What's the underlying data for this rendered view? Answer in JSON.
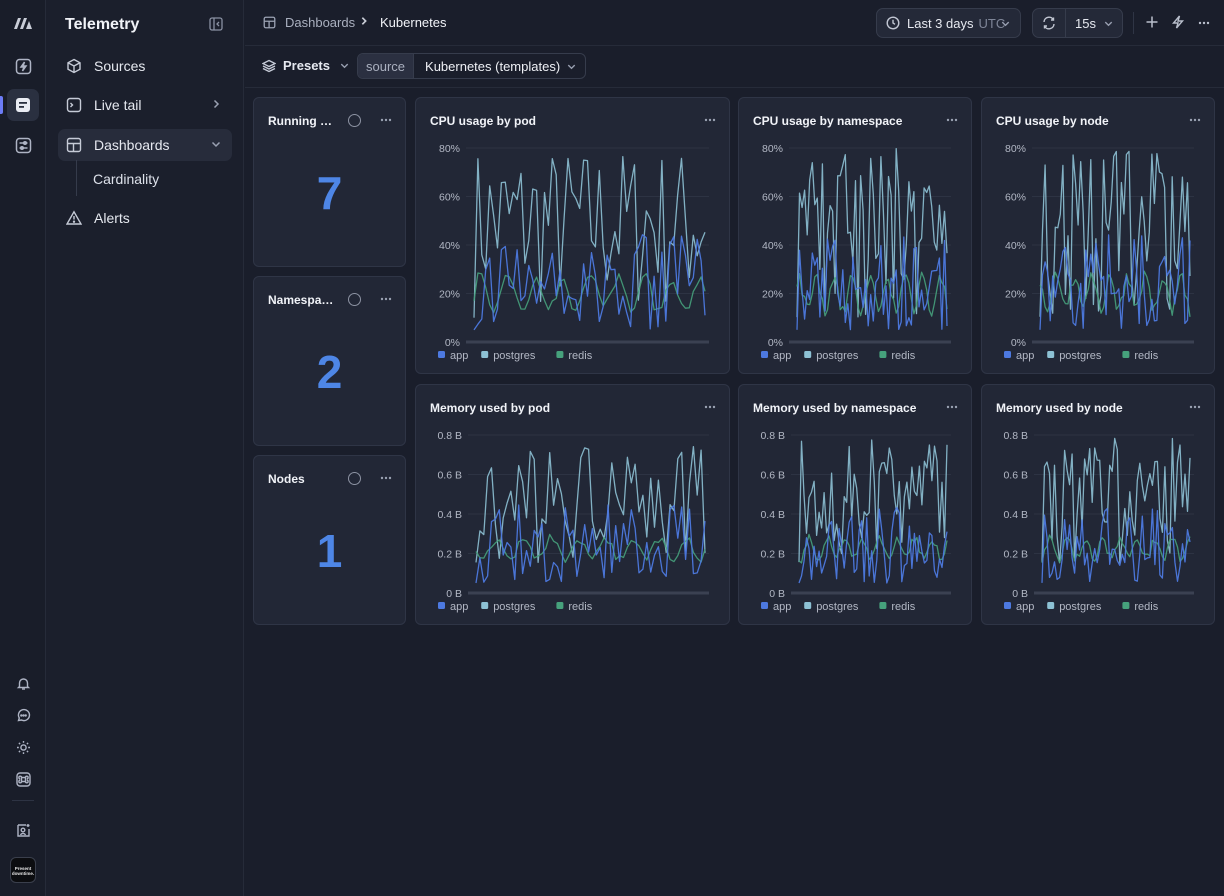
{
  "app": {
    "title": "Telemetry"
  },
  "nav": {
    "items": [
      {
        "label": "Sources",
        "icon": "cube-icon"
      },
      {
        "label": "Live tail",
        "icon": "terminal-icon"
      },
      {
        "label": "Dashboards",
        "icon": "dashboard-icon"
      },
      {
        "label": "Alerts",
        "icon": "alert-triangle-icon"
      }
    ],
    "sub_item": "Cardinality"
  },
  "org_badge": "Present downtime.",
  "breadcrumb": {
    "root": "Dashboards",
    "current": "Kubernetes"
  },
  "time_range": {
    "label": "Last 3 days",
    "timezone": "UTC"
  },
  "refresh": {
    "interval": "15s"
  },
  "toolbar": {
    "presets_label": "Presets",
    "source_key": "source",
    "source_value": "Kubernetes (templates)"
  },
  "stats": [
    {
      "title": "Running pods",
      "value": "7"
    },
    {
      "title": "Namespaces",
      "value": "2"
    },
    {
      "title": "Nodes",
      "value": "1"
    }
  ],
  "colors": {
    "accent": "#6c7cf6",
    "app": "#4d79e0",
    "postgres": "#8dc1d4",
    "redis": "#46a17c",
    "stat": "#4e86e6"
  },
  "chart_data": [
    {
      "type": "line",
      "title": "CPU usage by pod",
      "yticks": [
        "0%",
        "20%",
        "40%",
        "60%",
        "80%"
      ],
      "ylim": [
        0,
        80
      ],
      "x_points": 60,
      "series": [
        {
          "name": "app",
          "range": [
            5,
            45
          ]
        },
        {
          "name": "postgres",
          "range": [
            10,
            80
          ]
        },
        {
          "name": "redis",
          "range": [
            10,
            30
          ]
        }
      ]
    },
    {
      "type": "line",
      "title": "CPU usage by namespace",
      "yticks": [
        "0%",
        "20%",
        "40%",
        "60%",
        "80%"
      ],
      "ylim": [
        0,
        80
      ],
      "x_points": 60,
      "series": [
        {
          "name": "app",
          "range": [
            5,
            45
          ]
        },
        {
          "name": "postgres",
          "range": [
            10,
            80
          ]
        },
        {
          "name": "redis",
          "range": [
            10,
            30
          ]
        }
      ]
    },
    {
      "type": "line",
      "title": "CPU usage by node",
      "yticks": [
        "0%",
        "20%",
        "40%",
        "60%",
        "80%"
      ],
      "ylim": [
        0,
        80
      ],
      "x_points": 60,
      "series": [
        {
          "name": "app",
          "range": [
            5,
            45
          ]
        },
        {
          "name": "postgres",
          "range": [
            10,
            80
          ]
        },
        {
          "name": "redis",
          "range": [
            10,
            30
          ]
        }
      ]
    },
    {
      "type": "line",
      "title": "Memory used by pod",
      "yticks": [
        "0 B",
        "0.2 B",
        "0.4 B",
        "0.6 B",
        "0.8 B"
      ],
      "ylim": [
        0,
        0.8
      ],
      "x_points": 60,
      "series": [
        {
          "name": "app",
          "range": [
            0.05,
            0.45
          ]
        },
        {
          "name": "postgres",
          "range": [
            0.15,
            0.75
          ]
        },
        {
          "name": "redis",
          "range": [
            0.15,
            0.3
          ]
        }
      ]
    },
    {
      "type": "line",
      "title": "Memory used by namespace",
      "yticks": [
        "0 B",
        "0.2 B",
        "0.4 B",
        "0.6 B",
        "0.8 B"
      ],
      "ylim": [
        0,
        0.8
      ],
      "x_points": 60,
      "series": [
        {
          "name": "app",
          "range": [
            0.05,
            0.45
          ]
        },
        {
          "name": "postgres",
          "range": [
            0.15,
            0.79
          ]
        },
        {
          "name": "redis",
          "range": [
            0.15,
            0.3
          ]
        }
      ]
    },
    {
      "type": "line",
      "title": "Memory used by node",
      "yticks": [
        "0 B",
        "0.2 B",
        "0.4 B",
        "0.6 B",
        "0.8 B"
      ],
      "ylim": [
        0,
        0.8
      ],
      "x_points": 60,
      "series": [
        {
          "name": "app",
          "range": [
            0.05,
            0.45
          ]
        },
        {
          "name": "postgres",
          "range": [
            0.15,
            0.79
          ]
        },
        {
          "name": "redis",
          "range": [
            0.15,
            0.3
          ]
        }
      ]
    }
  ]
}
